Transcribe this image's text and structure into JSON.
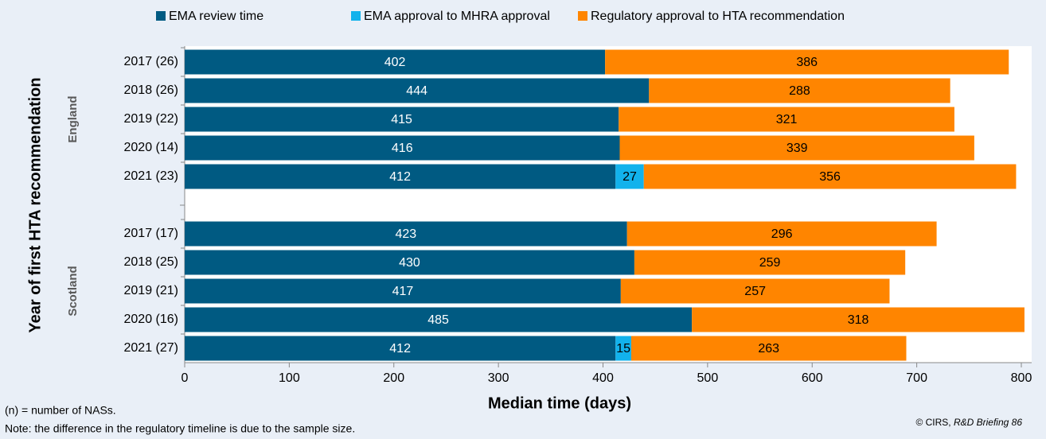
{
  "chart_data": {
    "type": "stacked-barh",
    "categories": [
      "2017 (26)",
      "2018 (26)",
      "2019 (22)",
      "2020 (14)",
      "2021 (23)",
      null,
      "2017 (17)",
      "2018 (25)",
      "2019 (21)",
      "2020 (16)",
      "2021 (27)"
    ],
    "groups": [
      {
        "label": "England",
        "rows": [
          0,
          4
        ]
      },
      {
        "label": "Scotland",
        "rows": [
          6,
          10
        ]
      }
    ],
    "series": [
      {
        "name": "EMA review time",
        "color": "#005a82",
        "label_color": "#ffffff",
        "values": [
          402,
          444,
          415,
          416,
          412,
          null,
          423,
          430,
          417,
          485,
          412
        ]
      },
      {
        "name": "EMA approval to MHRA approval",
        "color": "#12b2ec",
        "label_color": "#000000",
        "values": [
          null,
          null,
          null,
          null,
          27,
          null,
          null,
          null,
          null,
          null,
          15
        ]
      },
      {
        "name": "Regulatory approval to HTA recommendation",
        "color": "#ff8500",
        "label_color": "#000000",
        "values": [
          386,
          288,
          321,
          339,
          356,
          null,
          296,
          259,
          257,
          318,
          263
        ]
      }
    ],
    "xlabel": "Median time (days)",
    "ylabel": "Year of first HTA recommendation",
    "xlim": [
      0,
      800
    ],
    "xticks": [
      0,
      100,
      200,
      300,
      400,
      500,
      600,
      700,
      800
    ],
    "legend": "top",
    "footnotes": [
      "(n) = number of NASs.",
      "Note: the difference in the regulatory timeline is due to the sample size."
    ],
    "copyright": "© CIRS, ",
    "copyright_source": "R&D Briefing 86"
  }
}
